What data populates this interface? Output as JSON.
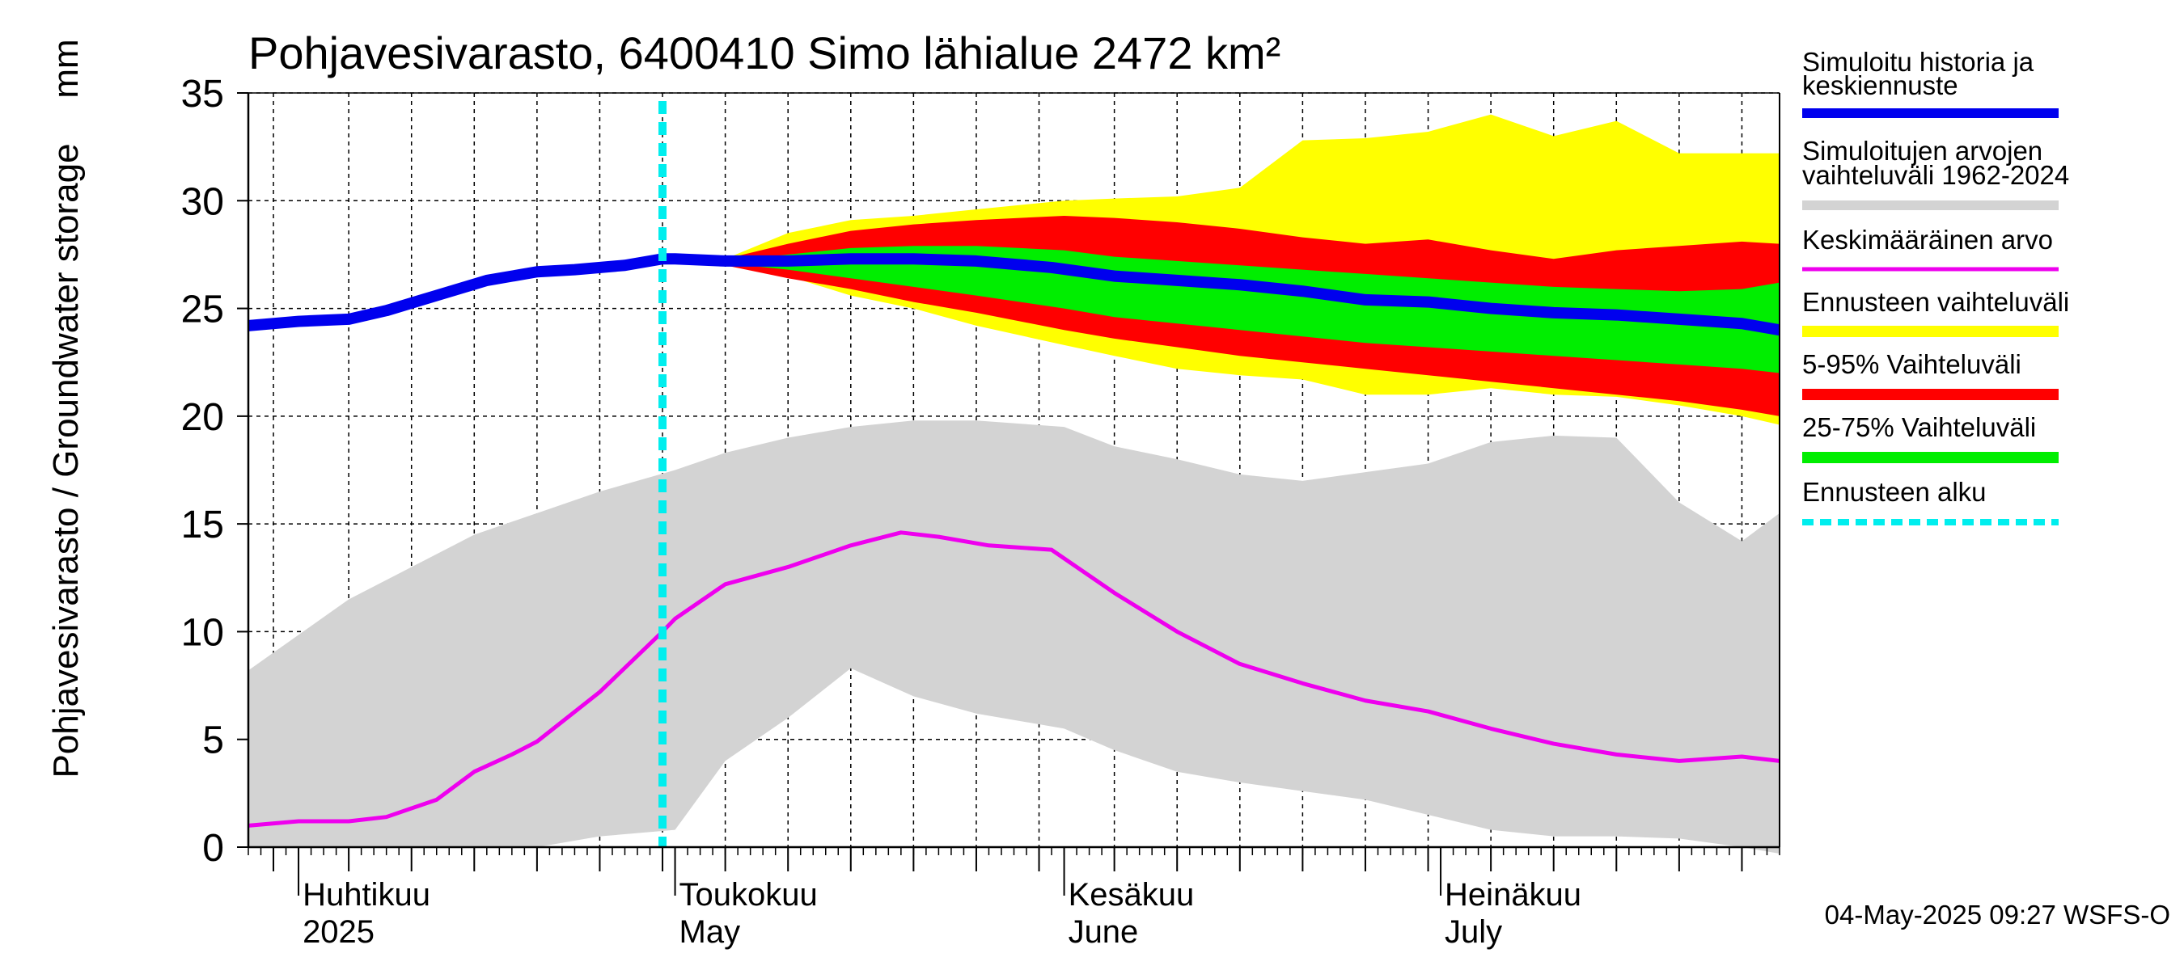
{
  "chart_data": {
    "type": "area",
    "title": "Pohjavesivarasto, 6400410 Simo lähialue 2472 km²",
    "ylabel": "Pohjavesivarasto / Groundwater storage",
    "yunit": "mm",
    "ylim": [
      0,
      35
    ],
    "yticks": [
      0,
      5,
      10,
      15,
      20,
      25,
      30,
      35
    ],
    "xlim": [
      "2025-03-28",
      "2025-07-28"
    ],
    "month_labels": [
      {
        "fi": "Huhtikuu",
        "en": "2025",
        "date": "2025-04-01"
      },
      {
        "fi": "Toukokuu",
        "en": "May",
        "date": "2025-05-01"
      },
      {
        "fi": "Kesäkuu",
        "en": "June",
        "date": "2025-06-01"
      },
      {
        "fi": "Heinäkuu",
        "en": "July",
        "date": "2025-07-01"
      }
    ],
    "forecast_start": "2025-04-30",
    "grid": true,
    "footer": "04-May-2025 09:27 WSFS-O",
    "legend_position": "right",
    "legend": [
      {
        "label": "Simuloitu historia ja keskiennuste",
        "color": "#0000ee"
      },
      {
        "label": "Simuloitujen arvojen vaihteluväli 1962-2024",
        "color": "#d3d3d3"
      },
      {
        "label": "Keskimääräinen arvo",
        "color": "#ee00ee"
      },
      {
        "label": "Ennusteen vaihteluväli",
        "color": "#ffff00"
      },
      {
        "label": "5-95% Vaihteluväli",
        "color": "#ff0000"
      },
      {
        "label": "25-75% Vaihteluväli",
        "color": "#00ee00"
      },
      {
        "label": "Ennusteen alku",
        "color": "#00eeee"
      }
    ],
    "series": [
      {
        "name": "Simuloitujen arvojen vaihteluväli 1962-2024",
        "kind": "band",
        "color": "#d3d3d3",
        "x": [
          "2025-03-28",
          "2025-04-05",
          "2025-04-10",
          "2025-04-15",
          "2025-04-20",
          "2025-04-25",
          "2025-05-01",
          "2025-05-05",
          "2025-05-10",
          "2025-05-15",
          "2025-05-20",
          "2025-05-25",
          "2025-06-01",
          "2025-06-05",
          "2025-06-10",
          "2025-06-15",
          "2025-06-20",
          "2025-06-25",
          "2025-06-30",
          "2025-07-05",
          "2025-07-10",
          "2025-07-15",
          "2025-07-20",
          "2025-07-25",
          "2025-07-28"
        ],
        "lower": [
          0,
          0,
          0,
          0,
          0,
          0.5,
          0.8,
          4,
          6,
          8.3,
          7,
          6.2,
          5.5,
          4.5,
          3.5,
          3,
          2.6,
          2.2,
          1.5,
          0.8,
          0.5,
          0.5,
          0.4,
          0,
          -0.3
        ],
        "upper": [
          8.2,
          11.5,
          13,
          14.5,
          15.5,
          16.5,
          17.5,
          18.3,
          19,
          19.5,
          19.8,
          19.8,
          19.5,
          18.6,
          18,
          17.3,
          17,
          17.4,
          17.8,
          18.8,
          19.1,
          19,
          16,
          14.2,
          15.5
        ]
      },
      {
        "name": "Ennusteen vaihteluväli",
        "kind": "band",
        "color": "#ffff00",
        "x": [
          "2025-04-30",
          "2025-05-05",
          "2025-05-10",
          "2025-05-15",
          "2025-05-20",
          "2025-05-25",
          "2025-06-01",
          "2025-06-05",
          "2025-06-10",
          "2025-06-15",
          "2025-06-20",
          "2025-06-25",
          "2025-06-30",
          "2025-07-05",
          "2025-07-10",
          "2025-07-15",
          "2025-07-20",
          "2025-07-25",
          "2025-07-28"
        ],
        "lower": [
          27.2,
          27.1,
          26.5,
          25.6,
          25.0,
          24.2,
          23.3,
          22.8,
          22.2,
          21.9,
          21.7,
          21.0,
          21.0,
          21.3,
          21.0,
          20.9,
          20.5,
          20.0,
          19.6
        ],
        "upper": [
          27.2,
          27.3,
          28.5,
          29.1,
          29.3,
          29.6,
          30.0,
          30.1,
          30.2,
          30.6,
          32.8,
          32.9,
          33.2,
          34.0,
          33.0,
          33.7,
          32.2,
          32.2,
          32.2
        ]
      },
      {
        "name": "5-95% Vaihteluväli",
        "kind": "band",
        "color": "#ff0000",
        "x": [
          "2025-04-30",
          "2025-05-05",
          "2025-05-10",
          "2025-05-15",
          "2025-05-20",
          "2025-05-25",
          "2025-06-01",
          "2025-06-05",
          "2025-06-10",
          "2025-06-15",
          "2025-06-20",
          "2025-06-25",
          "2025-06-30",
          "2025-07-05",
          "2025-07-10",
          "2025-07-15",
          "2025-07-20",
          "2025-07-25",
          "2025-07-28"
        ],
        "lower": [
          27.2,
          27.0,
          26.4,
          25.9,
          25.3,
          24.8,
          24.0,
          23.6,
          23.2,
          22.8,
          22.5,
          22.2,
          21.9,
          21.6,
          21.3,
          21.0,
          20.7,
          20.3,
          20.0
        ],
        "upper": [
          27.2,
          27.3,
          28.0,
          28.6,
          28.9,
          29.1,
          29.3,
          29.2,
          29.0,
          28.7,
          28.3,
          28.0,
          28.2,
          27.7,
          27.3,
          27.7,
          27.9,
          28.1,
          28.0
        ]
      },
      {
        "name": "25-75% Vaihteluväli",
        "kind": "band",
        "color": "#00ee00",
        "x": [
          "2025-04-30",
          "2025-05-05",
          "2025-05-10",
          "2025-05-15",
          "2025-05-20",
          "2025-05-25",
          "2025-06-01",
          "2025-06-05",
          "2025-06-10",
          "2025-06-15",
          "2025-06-20",
          "2025-06-25",
          "2025-06-30",
          "2025-07-05",
          "2025-07-10",
          "2025-07-15",
          "2025-07-20",
          "2025-07-25",
          "2025-07-28"
        ],
        "lower": [
          27.2,
          27.1,
          26.8,
          26.4,
          26.0,
          25.6,
          25.0,
          24.6,
          24.3,
          24.0,
          23.7,
          23.4,
          23.2,
          23.0,
          22.8,
          22.6,
          22.4,
          22.2,
          22.0
        ],
        "upper": [
          27.2,
          27.2,
          27.5,
          27.8,
          27.9,
          27.9,
          27.7,
          27.4,
          27.2,
          27.0,
          26.8,
          26.6,
          26.4,
          26.2,
          26.0,
          25.9,
          25.8,
          25.9,
          26.2
        ]
      },
      {
        "name": "Keskimääräinen arvo",
        "kind": "line",
        "color": "#ee00ee",
        "x": [
          "2025-03-28",
          "2025-04-01",
          "2025-04-05",
          "2025-04-08",
          "2025-04-12",
          "2025-04-15",
          "2025-04-18",
          "2025-04-20",
          "2025-04-25",
          "2025-04-30",
          "2025-05-01",
          "2025-05-05",
          "2025-05-10",
          "2025-05-15",
          "2025-05-19",
          "2025-05-22",
          "2025-05-26",
          "2025-05-31",
          "2025-06-05",
          "2025-06-10",
          "2025-06-15",
          "2025-06-20",
          "2025-06-25",
          "2025-06-30",
          "2025-07-05",
          "2025-07-10",
          "2025-07-15",
          "2025-07-20",
          "2025-07-25",
          "2025-07-28"
        ],
        "y": [
          1.0,
          1.2,
          1.2,
          1.4,
          2.2,
          3.5,
          4.3,
          4.9,
          7.2,
          10.0,
          10.6,
          12.2,
          13.0,
          14.0,
          14.6,
          14.4,
          14.0,
          13.8,
          11.8,
          10.0,
          8.5,
          7.6,
          6.8,
          6.3,
          5.5,
          4.8,
          4.3,
          4.0,
          4.2,
          4.0
        ]
      },
      {
        "name": "Simuloitu historia ja keskiennuste",
        "kind": "line",
        "color": "#0000ee",
        "x": [
          "2025-03-28",
          "2025-04-01",
          "2025-04-05",
          "2025-04-08",
          "2025-04-12",
          "2025-04-16",
          "2025-04-20",
          "2025-04-23",
          "2025-04-27",
          "2025-04-30",
          "2025-05-01",
          "2025-05-05",
          "2025-05-10",
          "2025-05-15",
          "2025-05-20",
          "2025-05-25",
          "2025-05-31",
          "2025-06-05",
          "2025-06-10",
          "2025-06-15",
          "2025-06-20",
          "2025-06-25",
          "2025-06-30",
          "2025-07-05",
          "2025-07-10",
          "2025-07-15",
          "2025-07-20",
          "2025-07-25",
          "2025-07-28"
        ],
        "y": [
          24.2,
          24.4,
          24.5,
          24.9,
          25.6,
          26.3,
          26.7,
          26.8,
          27.0,
          27.3,
          27.3,
          27.2,
          27.2,
          27.3,
          27.3,
          27.2,
          26.9,
          26.5,
          26.3,
          26.1,
          25.8,
          25.4,
          25.3,
          25.0,
          24.8,
          24.7,
          24.5,
          24.3,
          24.0
        ]
      }
    ]
  }
}
